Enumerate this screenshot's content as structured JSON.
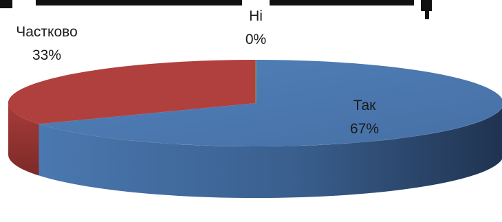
{
  "chart_data": {
    "type": "pie",
    "style": "3d",
    "title": "",
    "slices": [
      {
        "label": "Так",
        "value": 67,
        "display": "67%",
        "color": "#4a77ad"
      },
      {
        "label": "Частково",
        "value": 33,
        "display": "33%",
        "color": "#b0403d"
      },
      {
        "label": "Ні",
        "value": 0,
        "display": "0%",
        "color": "#8aa84a"
      }
    ]
  }
}
